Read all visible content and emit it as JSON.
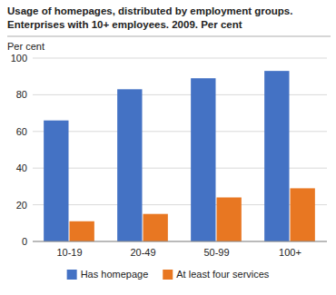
{
  "chart_data": {
    "type": "bar",
    "title": "Usage of homepages, distributed by employment groups.",
    "subtitle": "Enterprises with 10+ employees. 2009. Per cent",
    "y_label": "Per cent",
    "categories": [
      "10-19",
      "20-49",
      "50-99",
      "100+"
    ],
    "series": [
      {
        "name": "Has homepage",
        "color": "#4472C4",
        "values": [
          66,
          83,
          89,
          93
        ]
      },
      {
        "name": "At least four services",
        "color": "#E87722",
        "values": [
          11,
          15,
          24,
          29
        ]
      }
    ],
    "ylim": [
      0,
      100
    ],
    "yticks": [
      0,
      20,
      40,
      60,
      80,
      100
    ],
    "grid": true,
    "legend": "bottom"
  }
}
